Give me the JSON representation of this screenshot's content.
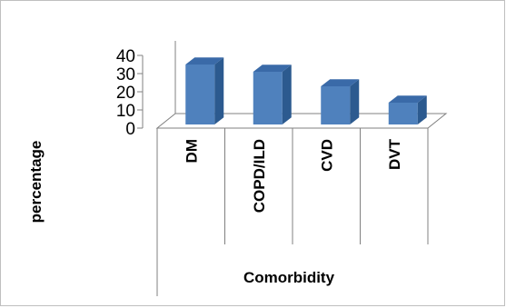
{
  "chart_data": {
    "type": "bar",
    "style": "3d-column",
    "categories": [
      "DM",
      "COPD/ILD",
      "CVD",
      "DVT"
    ],
    "values": [
      32,
      28,
      20,
      11
    ],
    "xlabel": "Comorbidity",
    "ylabel": "percentage",
    "ylim": [
      0,
      40
    ],
    "yticks": [
      0,
      10,
      20,
      30,
      40
    ],
    "grid": false,
    "legend": "none",
    "colors": {
      "bar_front": "#4f81bd",
      "bar_side": "#2c5a8f",
      "bar_top": "#3a6aa8",
      "axis": "#808080",
      "frame": "#bfbfbf"
    }
  }
}
